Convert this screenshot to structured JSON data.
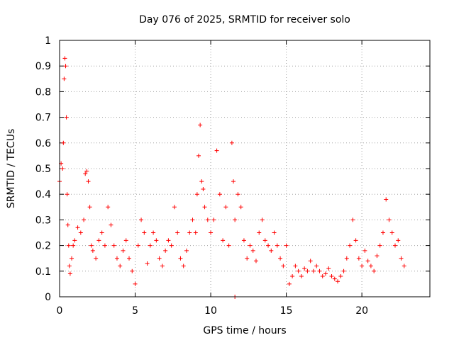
{
  "chart_data": {
    "type": "scatter",
    "title": "Day 076 of 2025, SRMTID for receiver solo",
    "xlabel": "GPS time / hours",
    "ylabel": "SRMTID / TECUs",
    "xlim": [
      0,
      24.5
    ],
    "ylim": [
      0,
      1
    ],
    "xticks": [
      0,
      5,
      10,
      15,
      20
    ],
    "yticks": [
      0,
      0.1,
      0.2,
      0.3,
      0.4,
      0.5,
      0.6,
      0.7,
      0.8,
      0.9,
      1
    ],
    "xtick_labels": [
      "0",
      "5",
      "10",
      "15",
      "20"
    ],
    "ytick_labels": [
      "0",
      "0.1",
      "0.2",
      "0.3",
      "0.4",
      "0.5",
      "0.6",
      "0.7",
      "0.8",
      "0.9",
      "1"
    ],
    "grid": true,
    "marker": "plus",
    "color": "#ff0000",
    "series": [
      {
        "name": "SRMTID",
        "x": [
          0.0,
          0.1,
          0.2,
          0.25,
          0.3,
          0.35,
          0.4,
          0.45,
          0.5,
          0.55,
          0.6,
          0.65,
          0.7,
          0.8,
          0.9,
          1.0,
          1.2,
          1.4,
          1.6,
          1.7,
          1.8,
          1.9,
          2.0,
          2.1,
          2.2,
          2.4,
          2.6,
          2.8,
          3.0,
          3.2,
          3.4,
          3.6,
          3.8,
          4.0,
          4.2,
          4.4,
          4.6,
          4.8,
          5.0,
          5.2,
          5.4,
          5.6,
          5.8,
          6.0,
          6.2,
          6.4,
          6.6,
          6.8,
          7.0,
          7.2,
          7.4,
          7.6,
          7.8,
          8.0,
          8.2,
          8.4,
          8.6,
          8.8,
          9.0,
          9.1,
          9.2,
          9.3,
          9.4,
          9.5,
          9.6,
          9.8,
          10.0,
          10.2,
          10.4,
          10.6,
          10.8,
          11.0,
          11.2,
          11.4,
          11.5,
          11.6,
          11.8,
          12.0,
          12.2,
          12.4,
          12.6,
          12.8,
          13.0,
          13.2,
          13.4,
          13.6,
          13.8,
          14.0,
          14.2,
          14.4,
          14.6,
          14.8,
          15.0,
          15.2,
          15.4,
          15.6,
          15.8,
          16.0,
          16.2,
          16.4,
          16.6,
          16.8,
          17.0,
          17.2,
          17.4,
          17.6,
          17.8,
          18.0,
          18.2,
          18.4,
          18.6,
          18.8,
          19.0,
          19.2,
          19.4,
          19.6,
          19.8,
          20.0,
          20.2,
          20.4,
          20.6,
          20.8,
          21.0,
          21.2,
          21.4,
          21.6,
          21.8,
          22.0,
          22.2,
          22.4,
          22.6,
          22.8
        ],
        "y": [
          0.45,
          0.52,
          0.5,
          0.6,
          0.85,
          0.93,
          0.9,
          0.7,
          0.4,
          0.28,
          0.2,
          0.12,
          0.09,
          0.15,
          0.2,
          0.22,
          0.27,
          0.25,
          0.3,
          0.48,
          0.49,
          0.45,
          0.35,
          0.2,
          0.18,
          0.15,
          0.22,
          0.25,
          0.2,
          0.35,
          0.28,
          0.2,
          0.15,
          0.12,
          0.18,
          0.22,
          0.15,
          0.1,
          0.05,
          0.2,
          0.3,
          0.25,
          0.13,
          0.2,
          0.25,
          0.22,
          0.15,
          0.12,
          0.18,
          0.22,
          0.2,
          0.35,
          0.25,
          0.15,
          0.12,
          0.18,
          0.25,
          0.3,
          0.25,
          0.4,
          0.55,
          0.67,
          0.45,
          0.42,
          0.35,
          0.3,
          0.25,
          0.3,
          0.57,
          0.4,
          0.22,
          0.35,
          0.2,
          0.6,
          0.45,
          0.3,
          0.4,
          0.35,
          0.22,
          0.15,
          0.2,
          0.18,
          0.14,
          0.25,
          0.3,
          0.22,
          0.2,
          0.18,
          0.25,
          0.2,
          0.15,
          0.12,
          0.2,
          0.05,
          0.08,
          0.12,
          0.1,
          0.08,
          0.11,
          0.1,
          0.14,
          0.1,
          0.12,
          0.1,
          0.08,
          0.09,
          0.11,
          0.08,
          0.07,
          0.06,
          0.08,
          0.1,
          0.15,
          0.2,
          0.3,
          0.22,
          0.15,
          0.12,
          0.18,
          0.14,
          0.12,
          0.1,
          0.16,
          0.2,
          0.25,
          0.38,
          0.3,
          0.25,
          0.2,
          0.22,
          0.15,
          0.12
        ],
        "outliers_x": [
          11.6
        ],
        "outliers_y": [
          0.0
        ]
      }
    ]
  }
}
